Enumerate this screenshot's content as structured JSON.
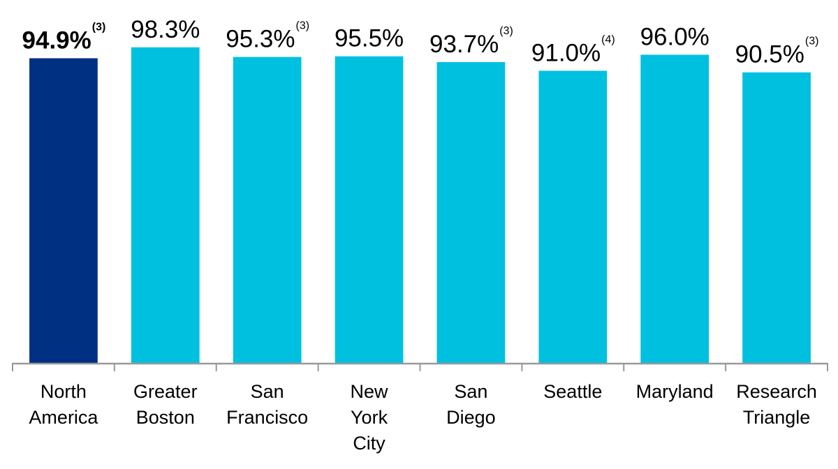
{
  "chart_data": {
    "type": "bar",
    "categories": [
      "North America",
      "Greater Boston",
      "San Francisco",
      "New York City",
      "San Diego",
      "Seattle",
      "Maryland",
      "Research Triangle"
    ],
    "values": [
      94.9,
      98.3,
      95.3,
      95.5,
      93.7,
      91.0,
      96.0,
      90.5
    ],
    "value_labels": [
      "94.9%",
      "98.3%",
      "95.3%",
      "95.5%",
      "93.7%",
      "91.0%",
      "96.0%",
      "90.5%"
    ],
    "footnote_marks": [
      "(3)",
      null,
      "(3)",
      null,
      "(3)",
      "(4)",
      null,
      "(3)"
    ],
    "colors": [
      "#003082",
      "#00c0e0",
      "#00c0e0",
      "#00c0e0",
      "#00c0e0",
      "#00c0e0",
      "#00c0e0",
      "#00c0e0"
    ],
    "highlight_index": 0,
    "ylim": [
      0,
      100
    ]
  }
}
